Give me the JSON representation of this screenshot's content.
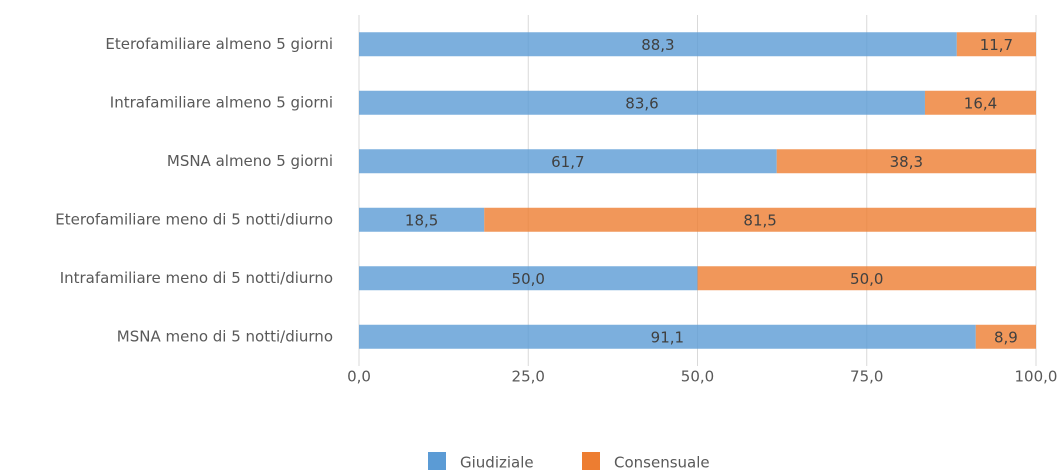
{
  "chart_data": {
    "type": "stacked_barh",
    "categories": [
      "Eterofamiliare almeno 5 giorni",
      "Intrafamiliare almeno 5 giorni",
      "MSNA almeno 5 giorni",
      "Eterofamiliare meno di 5 notti/diurno",
      "Intrafamiliare meno di 5 notti/diurno",
      "MSNA meno di 5 notti/diurno"
    ],
    "series": [
      {
        "name": "Giudiziale",
        "color": "#5b9bd5",
        "values": [
          88.3,
          83.6,
          61.7,
          18.5,
          50.0,
          91.1
        ],
        "value_labels": [
          "88,3",
          "83,6",
          "61,7",
          "18,5",
          "50,0",
          "91,1"
        ]
      },
      {
        "name": "Consensuale",
        "color": "#ed7d31",
        "values": [
          11.7,
          16.4,
          38.3,
          81.5,
          50.0,
          8.9
        ],
        "value_labels": [
          "11,7",
          "16,4",
          "38,3",
          "81,5",
          "50,0",
          "8,9"
        ]
      }
    ],
    "xlim": [
      0,
      100
    ],
    "xticks": [
      {
        "value": 0,
        "label": "0,0"
      },
      {
        "value": 25,
        "label": "25,0"
      },
      {
        "value": 50,
        "label": "50,0"
      },
      {
        "value": 75,
        "label": "75,0"
      },
      {
        "value": 100,
        "label": "100,0"
      }
    ],
    "grid": true,
    "legend": "bottom"
  }
}
